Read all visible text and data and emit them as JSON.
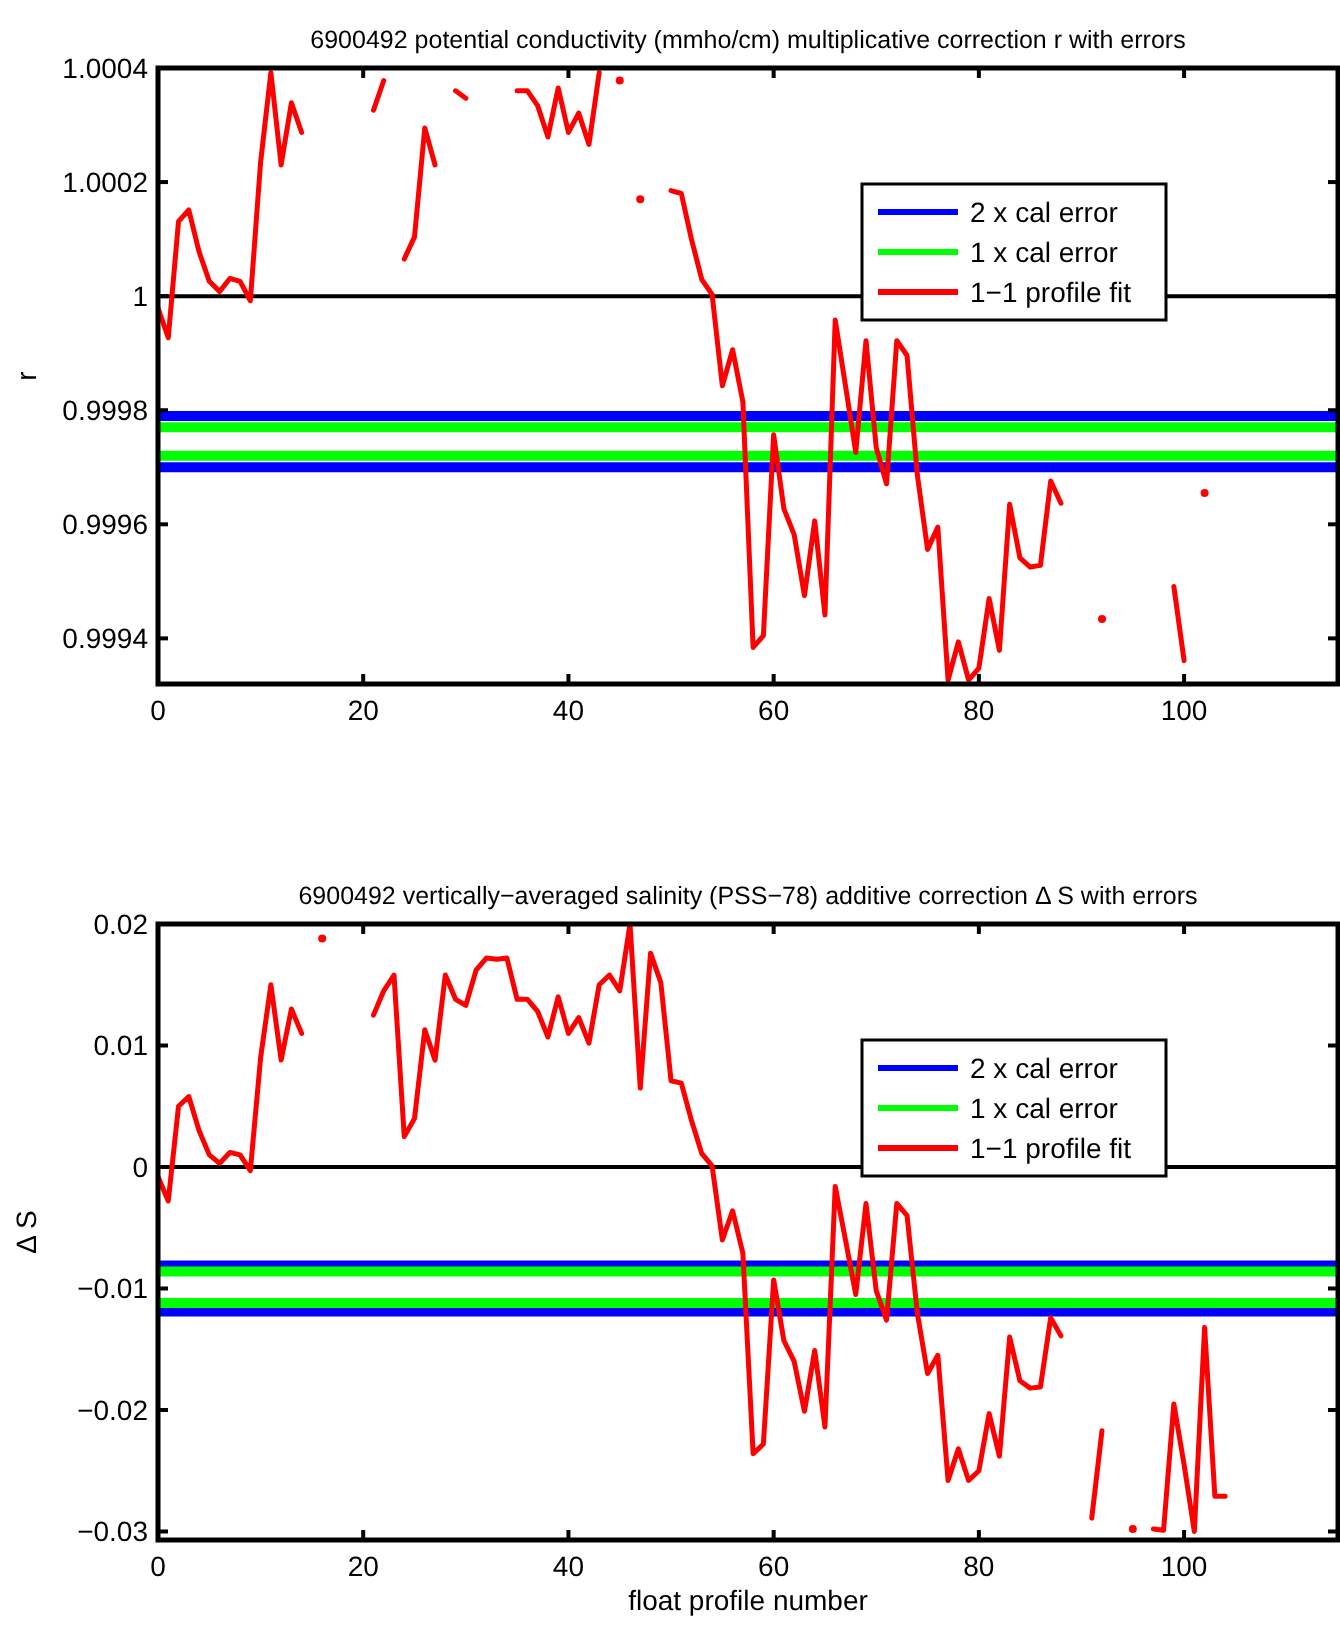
{
  "chart_data": [
    {
      "type": "line",
      "title": "6900492 potential conductivity (mmho/cm) multiplicative correction r with errors",
      "ylabel": "r",
      "xlim": [
        0,
        115
      ],
      "xticks": [
        0,
        20,
        40,
        60,
        80,
        100
      ],
      "ylim": [
        0.99932,
        1.0004
      ],
      "yticks": [
        0.9994,
        0.9996,
        0.9998,
        1,
        1.0002,
        1.0004
      ],
      "legend": "right",
      "ref_lines": [
        {
          "axis": "y",
          "value": 1,
          "color": "#000000"
        }
      ],
      "series": [
        {
          "name": "2 x cal error",
          "color": "#0000ff",
          "x": [
            0,
            115
          ],
          "values": [
            0.99979,
            0.99979
          ]
        },
        {
          "color": "#0000ff",
          "x": [
            0,
            115
          ],
          "values": [
            0.9997,
            0.9997
          ]
        },
        {
          "name": "1 x cal error",
          "color": "#00ff00",
          "x": [
            0,
            115
          ],
          "values": [
            0.99977,
            0.99977
          ]
        },
        {
          "color": "#00ff00",
          "x": [
            0,
            115
          ],
          "values": [
            0.99972,
            0.99972
          ]
        },
        {
          "name": "1−1 profile fit",
          "color": "#ff0000",
          "x": [
            0,
            1,
            2,
            3,
            4,
            5,
            6,
            7,
            8,
            9,
            10,
            11,
            12,
            13,
            14,
            15,
            16,
            17,
            18,
            19,
            20,
            21,
            22,
            23,
            24,
            25,
            26,
            27,
            28,
            29,
            30,
            31,
            32,
            33,
            34,
            35,
            36,
            37,
            38,
            39,
            40,
            41,
            42,
            43,
            44,
            45,
            46,
            47,
            48,
            49,
            50,
            51,
            52,
            53,
            54,
            55,
            56,
            57,
            58,
            59,
            60,
            61,
            62,
            63,
            64,
            65,
            66,
            67,
            68,
            69,
            70,
            71,
            72,
            73,
            74,
            75,
            76,
            77,
            78,
            79,
            80,
            81,
            82,
            83,
            84,
            85,
            86,
            87,
            88,
            89,
            90,
            91,
            92,
            93,
            94,
            95,
            96,
            97,
            98,
            99,
            100,
            101,
            102
          ],
          "values": [
            0.999979,
            0.999927,
            1.000131,
            1.000151,
            1.000078,
            1.000026,
            1.000008,
            1.000031,
            1.000026,
            0.999992,
            1.000235,
            1.000392,
            1.00023,
            1.000339,
            1.000287,
            null,
            null,
            null,
            null,
            null,
            null,
            1.000326,
            1.000378,
            null,
            1.000065,
            1.000104,
            1.000295,
            1.00023,
            null,
            1.00036,
            1.000347,
            null,
            null,
            null,
            null,
            1.00036,
            1.00036,
            1.000334,
            1.000279,
            1.000365,
            1.000287,
            1.000321,
            1.000266,
            1.000392,
            null,
            1.000378,
            null,
            1.00017,
            null,
            null,
            1.000185,
            1.00018,
            1.000099,
            1.000029,
            1.000003,
            0.999843,
            0.999906,
            0.999815,
            0.999384,
            0.999405,
            0.999757,
            0.999627,
            0.999582,
            0.999475,
            0.999606,
            0.999441,
            0.999958,
            0.999843,
            0.999726,
            0.999922,
            0.999734,
            0.999671,
            0.999922,
            0.999896,
            0.999687,
            0.999556,
            0.999595,
            0.999327,
            0.999394,
            0.999327,
            0.999348,
            0.99947,
            0.999379,
            0.999635,
            0.999541,
            0.999525,
            0.999528,
            0.999676,
            0.999637,
            null,
            null,
            null,
            0.999434,
            null,
            null,
            null,
            null,
            null,
            null,
            0.999491,
            0.999361,
            null,
            0.999655
          ]
        }
      ]
    },
    {
      "type": "line",
      "title": "6900492 vertically−averaged salinity (PSS−78) additive correction Δ S with errors",
      "xlabel": "float profile number",
      "ylabel": "Δ S",
      "xlim": [
        0,
        115
      ],
      "xticks": [
        0,
        20,
        40,
        60,
        80,
        100
      ],
      "ylim": [
        -0.0307,
        0.02
      ],
      "yticks": [
        {
          "value": -0.03,
          "label": "−0.03"
        },
        {
          "value": -0.02,
          "label": "−0.02"
        },
        {
          "value": -0.01,
          "label": "−0.01"
        },
        0,
        0.01,
        0.02
      ],
      "legend": "right",
      "ref_lines": [
        {
          "axis": "y",
          "value": 0,
          "color": "#000000"
        }
      ],
      "series": [
        {
          "name": "2 x cal error",
          "color": "#0000ff",
          "x": [
            0,
            115
          ],
          "values": [
            -0.0081,
            -0.0081
          ]
        },
        {
          "color": "#0000ff",
          "x": [
            0,
            115
          ],
          "values": [
            -0.0119,
            -0.0119
          ]
        },
        {
          "name": "1 x cal error",
          "color": "#00ff00",
          "x": [
            0,
            115
          ],
          "values": [
            -0.0086,
            -0.0086
          ]
        },
        {
          "color": "#00ff00",
          "x": [
            0,
            115
          ],
          "values": [
            -0.0112,
            -0.0112
          ]
        },
        {
          "name": "1−1 profile fit",
          "color": "#ff0000",
          "x": [
            0,
            1,
            2,
            3,
            4,
            5,
            6,
            7,
            8,
            9,
            10,
            11,
            12,
            13,
            14,
            15,
            16,
            17,
            18,
            19,
            20,
            21,
            22,
            23,
            24,
            25,
            26,
            27,
            28,
            29,
            30,
            31,
            32,
            33,
            34,
            35,
            36,
            37,
            38,
            39,
            40,
            41,
            42,
            43,
            44,
            45,
            46,
            47,
            48,
            49,
            50,
            51,
            52,
            53,
            54,
            55,
            56,
            57,
            58,
            59,
            60,
            61,
            62,
            63,
            64,
            65,
            66,
            67,
            68,
            69,
            70,
            71,
            72,
            73,
            74,
            75,
            76,
            77,
            78,
            79,
            80,
            81,
            82,
            83,
            84,
            85,
            86,
            87,
            88,
            89,
            90,
            91,
            92,
            93,
            94,
            95,
            96,
            97,
            98,
            99,
            100,
            101,
            102,
            103,
            104
          ],
          "values": [
            -0.0008,
            -0.0028,
            0.005,
            0.0058,
            0.003,
            0.001,
            0.0003,
            0.0012,
            0.001,
            -0.0003,
            0.009,
            0.015,
            0.0088,
            0.013,
            0.011,
            null,
            0.0188,
            null,
            null,
            null,
            null,
            0.0125,
            0.0145,
            0.0158,
            0.0025,
            0.004,
            0.0113,
            0.0088,
            0.0158,
            0.0138,
            0.0133,
            0.0162,
            0.0172,
            0.0171,
            0.0172,
            0.0138,
            0.0138,
            0.0128,
            0.0107,
            0.014,
            0.011,
            0.0123,
            0.0102,
            0.015,
            0.0158,
            0.0145,
            0.02,
            0.0065,
            0.0176,
            0.0152,
            0.0071,
            0.0069,
            0.0038,
            0.0011,
            0.0001,
            -0.006,
            -0.0036,
            -0.0071,
            -0.0236,
            -0.0228,
            -0.0093,
            -0.0143,
            -0.016,
            -0.0201,
            -0.0151,
            -0.0214,
            -0.0016,
            -0.006,
            -0.0105,
            -0.003,
            -0.0102,
            -0.0126,
            -0.003,
            -0.004,
            -0.012,
            -0.017,
            -0.0155,
            -0.0258,
            -0.0232,
            -0.0258,
            -0.025,
            -0.0203,
            -0.0238,
            -0.014,
            -0.0176,
            -0.0182,
            -0.0181,
            -0.0124,
            -0.0139,
            null,
            null,
            -0.0289,
            -0.0217,
            null,
            null,
            -0.0298,
            null,
            -0.0298,
            -0.0299,
            -0.0195,
            -0.0245,
            -0.03,
            -0.0132,
            -0.0271,
            -0.0271
          ]
        }
      ]
    }
  ]
}
